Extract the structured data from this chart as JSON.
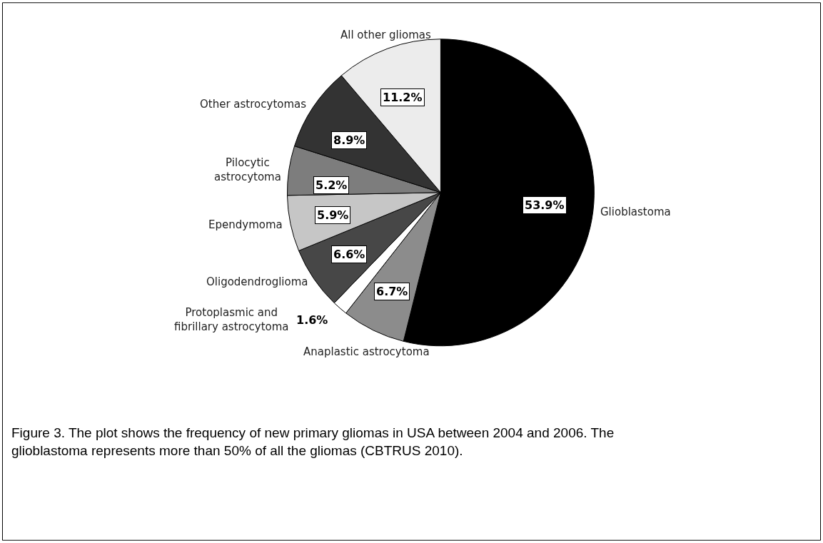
{
  "chart_data": {
    "type": "pie",
    "categories": [
      "Glioblastoma",
      "Anaplastic astrocytoma",
      "Protoplasmic and\nfibrillary astrocytoma",
      "Oligodendroglioma",
      "Ependymoma",
      "Pilocytic\nastrocytoma",
      "Other astrocytomas",
      "All other gliomas"
    ],
    "values": [
      53.9,
      6.7,
      1.6,
      6.6,
      5.9,
      5.2,
      8.9,
      11.2
    ],
    "value_labels": [
      "53.9%",
      "6.7%",
      "1.6%",
      "6.6%",
      "5.9%",
      "5.2%",
      "8.9%",
      "11.2%"
    ],
    "colors": [
      "#000000",
      "#8c8c8c",
      "#ffffff",
      "#474747",
      "#c6c6c6",
      "#7d7d7d",
      "#333333",
      "#ececec"
    ],
    "legend": false,
    "annotations": [
      "Figure 3. The plot shows the frequency of new primary gliomas in USA between 2004 and 2006. The glioblastoma represents more than 50% of all the gliomas (CBTRUS 2010)."
    ]
  }
}
